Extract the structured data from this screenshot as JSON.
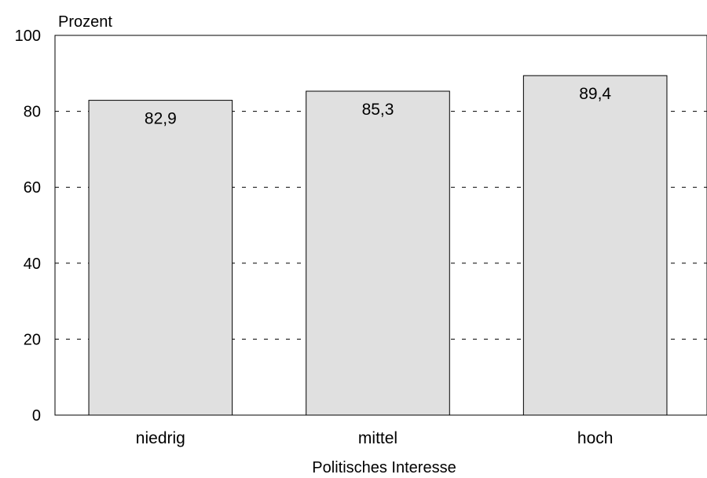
{
  "chart_data": {
    "type": "bar",
    "ylabel": "Prozent",
    "xlabel": "Politisches Interesse",
    "categories": [
      "niedrig",
      "mittel",
      "hoch"
    ],
    "values": [
      82.9,
      85.3,
      89.4
    ],
    "value_labels": [
      "82,9",
      "85,3",
      "89,4"
    ],
    "ylim": [
      0,
      100
    ],
    "yticks": [
      0,
      20,
      40,
      60,
      80,
      100
    ],
    "ytick_labels": [
      "0",
      "20",
      "40",
      "60",
      "80",
      "100"
    ],
    "grid": "dashed-horizontal",
    "bar_color": "#e0e0e0",
    "legend": "none"
  }
}
